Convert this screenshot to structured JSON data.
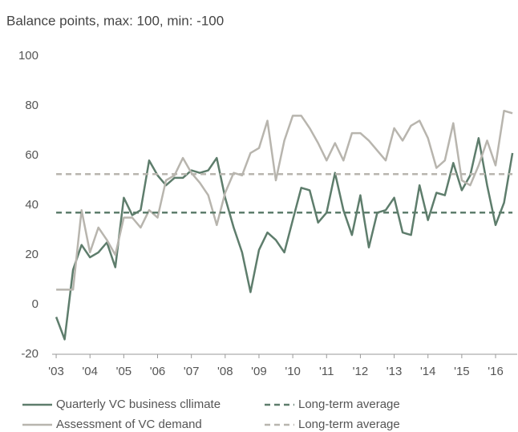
{
  "chart_data": {
    "type": "line",
    "title": "Balance points, max: 100, min: -100",
    "x": [
      2003,
      2003.25,
      2003.5,
      2003.75,
      2004,
      2004.25,
      2004.5,
      2004.75,
      2005,
      2005.25,
      2005.5,
      2005.75,
      2006,
      2006.25,
      2006.5,
      2006.75,
      2007,
      2007.25,
      2007.5,
      2007.75,
      2008,
      2008.25,
      2008.5,
      2008.75,
      2009,
      2009.25,
      2009.5,
      2009.75,
      2010,
      2010.25,
      2010.5,
      2010.75,
      2011,
      2011.25,
      2011.5,
      2011.75,
      2012,
      2012.25,
      2012.5,
      2012.75,
      2013,
      2013.25,
      2013.5,
      2013.75,
      2014,
      2014.25,
      2014.5,
      2014.75,
      2015,
      2015.25,
      2015.5,
      2015.75,
      2016,
      2016.25,
      2016.5
    ],
    "series": [
      {
        "name": "Quarterly VC business cllimate",
        "color": "#5e7d6c",
        "values": [
          -5,
          -14,
          14,
          24,
          19,
          21,
          25,
          15,
          43,
          36,
          38,
          58,
          52,
          48,
          51,
          51,
          54,
          53,
          54,
          59,
          43,
          31,
          21,
          5,
          22,
          29,
          26,
          21,
          34,
          47,
          46,
          33,
          37,
          53,
          38,
          28,
          44,
          23,
          37,
          38,
          43,
          29,
          28,
          48,
          34,
          45,
          44,
          57,
          46,
          52,
          67,
          48,
          32,
          41,
          61
        ]
      },
      {
        "name": "Assessment of VC demand",
        "color": "#b8b5ae",
        "values": [
          6,
          6,
          6,
          38,
          21,
          31,
          26,
          20,
          35,
          35,
          31,
          38,
          35,
          50,
          52,
          59,
          53,
          49,
          44,
          32,
          45,
          53,
          52,
          61,
          63,
          74,
          50,
          66,
          76,
          76,
          71,
          65,
          58,
          65,
          58,
          69,
          69,
          66,
          62,
          58,
          71,
          66,
          72,
          74,
          67,
          55,
          58,
          73,
          50,
          48,
          56,
          66,
          56,
          78,
          77
        ]
      },
      {
        "name": "Long-term average",
        "color": "#5e7d6c",
        "dashed": true,
        "value": 37
      },
      {
        "name": "Long-term average",
        "color": "#b8b5ae",
        "dashed": true,
        "value": 52.5
      }
    ],
    "xlim": [
      2002.88,
      2016.64
    ],
    "xticks": [
      {
        "value": 2003,
        "label": "'03"
      },
      {
        "value": 2004,
        "label": "'04"
      },
      {
        "value": 2005,
        "label": "'05"
      },
      {
        "value": 2006,
        "label": "'06"
      },
      {
        "value": 2007,
        "label": "'07"
      },
      {
        "value": 2008,
        "label": "'08"
      },
      {
        "value": 2009,
        "label": "'09"
      },
      {
        "value": 2010,
        "label": "'10"
      },
      {
        "value": 2011,
        "label": "'11"
      },
      {
        "value": 2012,
        "label": "'12"
      },
      {
        "value": 2013,
        "label": "'13"
      },
      {
        "value": 2014,
        "label": "'14"
      },
      {
        "value": 2015,
        "label": "'15"
      },
      {
        "value": 2016,
        "label": "'16"
      }
    ],
    "ylim": [
      -20,
      100
    ],
    "yticks": [
      -20,
      0,
      20,
      40,
      60,
      80,
      100
    ],
    "grid": false,
    "legend": "bottom"
  }
}
